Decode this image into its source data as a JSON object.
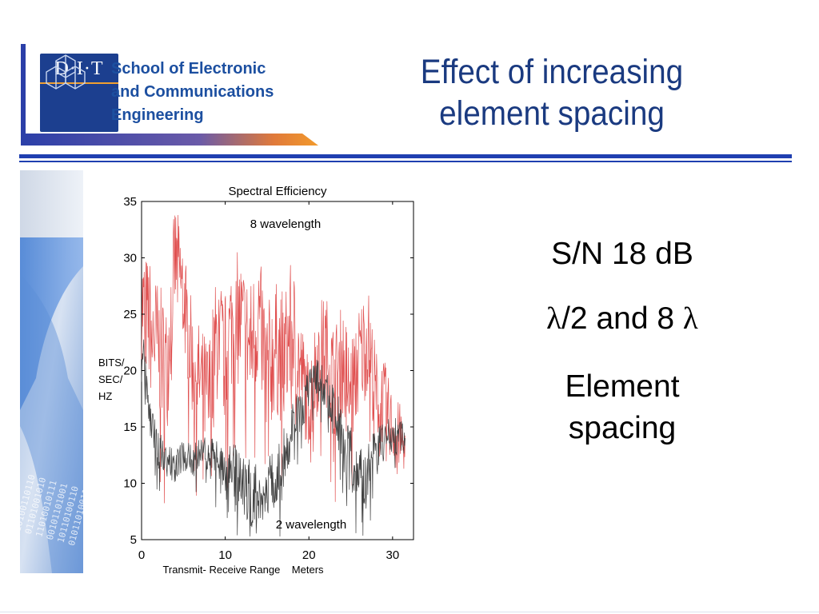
{
  "header": {
    "logo_text": "D·I·T",
    "school_lines": [
      "School of Electronic",
      "and Communications",
      "Engineering"
    ],
    "slide_title_lines": [
      "Effect of increasing",
      "element spacing"
    ]
  },
  "colors": {
    "title": "#1a3a80",
    "rule": "#1f3fb0",
    "logo_blue": "#1c3f8f",
    "series_8wl": "#e05050",
    "series_2wl": "#404040"
  },
  "right_text": {
    "line1": "S/N 18 dB",
    "lambda": "λ",
    "line2_mid": "/2 and 8 ",
    "line3": "Element",
    "line4": "spacing"
  },
  "chart_data": {
    "type": "line",
    "title": "Spectral Efficiency",
    "xlabel": "Transmit- Receive Range    Meters",
    "ylabel": "BITS/ SEC/ HZ",
    "ylabel_lines": [
      "BITS/",
      "SEC/",
      "HZ"
    ],
    "xlim": [
      0,
      32.5
    ],
    "ylim": [
      5,
      35
    ],
    "xticks": [
      0,
      10,
      20,
      30
    ],
    "yticks": [
      5,
      10,
      15,
      20,
      25,
      30,
      35
    ],
    "grid": false,
    "annotations": [
      "8 wavelength",
      "2 wavelength"
    ],
    "series": [
      {
        "name": "8 wavelength",
        "x": [
          0,
          1,
          2,
          3,
          4,
          5,
          6,
          7,
          8,
          9,
          10,
          11,
          12,
          13,
          14,
          15,
          16,
          17,
          18,
          19,
          20,
          21,
          22,
          23,
          24,
          25,
          26,
          27,
          28,
          29,
          30,
          31,
          31.5
        ],
        "y": [
          26,
          24,
          22,
          20,
          30,
          27,
          21,
          19,
          17,
          23,
          21,
          25,
          24,
          22,
          25,
          20,
          22,
          21,
          24,
          20,
          17,
          21,
          22,
          19,
          21,
          18,
          21,
          23,
          18,
          17,
          15,
          14,
          13
        ],
        "spread": [
          5,
          6,
          6,
          6,
          5,
          5,
          5,
          5,
          6,
          6,
          6,
          6,
          6,
          6,
          6,
          6,
          6,
          6,
          6,
          5,
          4,
          5,
          5,
          5,
          5,
          5,
          5,
          5,
          4,
          4,
          3,
          3,
          2
        ]
      },
      {
        "name": "2 wavelength",
        "x": [
          0,
          1,
          2,
          3,
          4,
          5,
          6,
          7,
          8,
          9,
          10,
          11,
          12,
          13,
          14,
          15,
          16,
          17,
          18,
          19,
          20,
          21,
          22,
          23,
          24,
          25,
          26,
          27,
          28,
          29,
          30,
          31,
          31.5
        ],
        "y": [
          22,
          16,
          13,
          12,
          11.5,
          12.5,
          12,
          13,
          12.5,
          12,
          11.5,
          11,
          10,
          9,
          9,
          9.5,
          10,
          12,
          15,
          16.5,
          18,
          19,
          18,
          16.5,
          14,
          12,
          10.5,
          11,
          13,
          13.5,
          14,
          14,
          14
        ],
        "spread": [
          3,
          2,
          2,
          1.5,
          1.5,
          1.5,
          1.5,
          1.5,
          1.5,
          2,
          2,
          2.5,
          3,
          3,
          3,
          3,
          3,
          3,
          2.5,
          2,
          2,
          2,
          2,
          2.5,
          2.5,
          3,
          3,
          2.5,
          2,
          2,
          2,
          1.5,
          1.5
        ]
      }
    ]
  }
}
